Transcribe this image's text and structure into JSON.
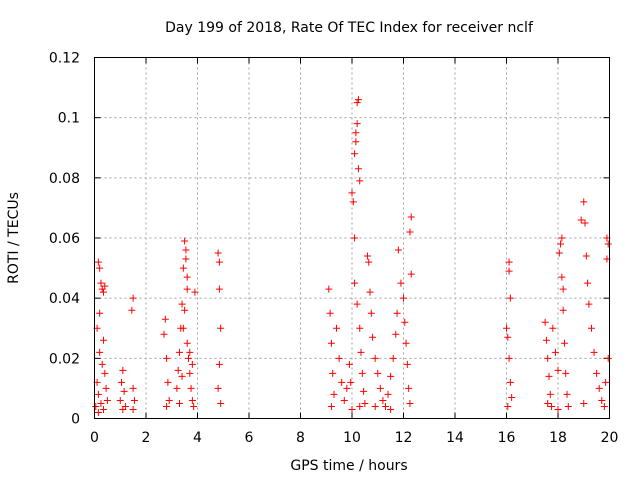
{
  "chart_data": {
    "type": "scatter",
    "title": "Day 199 of 2018, Rate Of TEC Index for receiver nclf",
    "xlabel": "GPS time / hours",
    "ylabel": "ROTI / TECUs",
    "xlim": [
      0,
      20
    ],
    "ylim": [
      0,
      0.12
    ],
    "grid": true,
    "xticks": [
      0,
      2,
      4,
      6,
      8,
      10,
      12,
      14,
      16,
      18,
      20
    ],
    "xtick_labels": [
      "0",
      "2",
      "4",
      "6",
      "8",
      "10",
      "12",
      "14",
      "16",
      "18",
      "20"
    ],
    "yticks": [
      0,
      0.02,
      0.04,
      0.06,
      0.08,
      0.1,
      0.12
    ],
    "ytick_labels": [
      "0",
      "0.02",
      "0.04",
      "0.06",
      "0.08",
      "0.1",
      "0.12"
    ],
    "marker": "+",
    "color": "#ff0000",
    "series": [
      {
        "name": "ROTI",
        "points": [
          [
            0.05,
            0.004
          ],
          [
            0.1,
            0.012
          ],
          [
            0.15,
            0.008
          ],
          [
            0.2,
            0.022
          ],
          [
            0.25,
            0.005
          ],
          [
            0.3,
            0.018
          ],
          [
            0.1,
            0.03
          ],
          [
            0.15,
            0.052
          ],
          [
            0.2,
            0.05
          ],
          [
            0.25,
            0.045
          ],
          [
            0.3,
            0.043
          ],
          [
            0.35,
            0.042
          ],
          [
            0.4,
            0.044
          ],
          [
            0.2,
            0.035
          ],
          [
            0.35,
            0.026
          ],
          [
            0.4,
            0.015
          ],
          [
            0.45,
            0.01
          ],
          [
            0.5,
            0.006
          ],
          [
            0.15,
            0.002
          ],
          [
            0.35,
            0.003
          ],
          [
            1.0,
            0.006
          ],
          [
            1.05,
            0.012
          ],
          [
            1.1,
            0.016
          ],
          [
            1.15,
            0.009
          ],
          [
            1.2,
            0.004
          ],
          [
            1.1,
            0.003
          ],
          [
            1.5,
            0.04
          ],
          [
            1.45,
            0.036
          ],
          [
            1.5,
            0.01
          ],
          [
            1.55,
            0.006
          ],
          [
            1.5,
            0.003
          ],
          [
            2.7,
            0.028
          ],
          [
            2.75,
            0.033
          ],
          [
            2.8,
            0.02
          ],
          [
            2.85,
            0.012
          ],
          [
            2.9,
            0.006
          ],
          [
            2.8,
            0.004
          ],
          [
            3.2,
            0.01
          ],
          [
            3.25,
            0.016
          ],
          [
            3.3,
            0.022
          ],
          [
            3.35,
            0.03
          ],
          [
            3.4,
            0.038
          ],
          [
            3.45,
            0.05
          ],
          [
            3.5,
            0.059
          ],
          [
            3.55,
            0.056
          ],
          [
            3.55,
            0.053
          ],
          [
            3.6,
            0.047
          ],
          [
            3.6,
            0.043
          ],
          [
            3.5,
            0.036
          ],
          [
            3.45,
            0.03
          ],
          [
            3.6,
            0.025
          ],
          [
            3.65,
            0.02
          ],
          [
            3.7,
            0.015
          ],
          [
            3.75,
            0.01
          ],
          [
            3.8,
            0.006
          ],
          [
            3.85,
            0.004
          ],
          [
            3.3,
            0.005
          ],
          [
            3.9,
            0.042
          ],
          [
            3.7,
            0.022
          ],
          [
            3.4,
            0.014
          ],
          [
            3.8,
            0.018
          ],
          [
            4.8,
            0.055
          ],
          [
            4.85,
            0.052
          ],
          [
            4.85,
            0.043
          ],
          [
            4.9,
            0.03
          ],
          [
            4.85,
            0.018
          ],
          [
            4.8,
            0.01
          ],
          [
            4.9,
            0.005
          ],
          [
            9.1,
            0.043
          ],
          [
            9.15,
            0.035
          ],
          [
            9.2,
            0.025
          ],
          [
            9.25,
            0.015
          ],
          [
            9.3,
            0.008
          ],
          [
            9.2,
            0.004
          ],
          [
            9.4,
            0.03
          ],
          [
            9.5,
            0.02
          ],
          [
            9.6,
            0.012
          ],
          [
            9.7,
            0.006
          ],
          [
            9.8,
            0.01
          ],
          [
            9.9,
            0.018
          ],
          [
            9.95,
            0.012
          ],
          [
            10.0,
            0.075
          ],
          [
            10.05,
            0.072
          ],
          [
            10.1,
            0.06
          ],
          [
            10.1,
            0.088
          ],
          [
            10.15,
            0.092
          ],
          [
            10.15,
            0.095
          ],
          [
            10.2,
            0.105
          ],
          [
            10.25,
            0.106
          ],
          [
            10.2,
            0.098
          ],
          [
            10.25,
            0.083
          ],
          [
            10.3,
            0.079
          ],
          [
            10.1,
            0.045
          ],
          [
            10.2,
            0.038
          ],
          [
            10.3,
            0.03
          ],
          [
            10.35,
            0.022
          ],
          [
            10.4,
            0.015
          ],
          [
            10.45,
            0.009
          ],
          [
            10.5,
            0.005
          ],
          [
            10.3,
            0.004
          ],
          [
            10.0,
            0.003
          ],
          [
            10.6,
            0.054
          ],
          [
            10.65,
            0.052
          ],
          [
            10.7,
            0.042
          ],
          [
            10.75,
            0.035
          ],
          [
            10.8,
            0.027
          ],
          [
            10.9,
            0.02
          ],
          [
            11.0,
            0.015
          ],
          [
            11.1,
            0.01
          ],
          [
            11.2,
            0.006
          ],
          [
            11.3,
            0.004
          ],
          [
            11.4,
            0.008
          ],
          [
            11.5,
            0.014
          ],
          [
            11.6,
            0.02
          ],
          [
            11.7,
            0.028
          ],
          [
            11.75,
            0.035
          ],
          [
            11.8,
            0.056
          ],
          [
            11.9,
            0.045
          ],
          [
            12.0,
            0.04
          ],
          [
            12.05,
            0.032
          ],
          [
            12.1,
            0.025
          ],
          [
            12.15,
            0.018
          ],
          [
            12.2,
            0.01
          ],
          [
            12.25,
            0.005
          ],
          [
            12.3,
            0.067
          ],
          [
            12.25,
            0.062
          ],
          [
            12.3,
            0.048
          ],
          [
            10.9,
            0.004
          ],
          [
            11.5,
            0.003
          ],
          [
            16.0,
            0.03
          ],
          [
            16.05,
            0.027
          ],
          [
            16.1,
            0.052
          ],
          [
            16.1,
            0.049
          ],
          [
            16.15,
            0.04
          ],
          [
            16.1,
            0.02
          ],
          [
            16.15,
            0.012
          ],
          [
            16.2,
            0.007
          ],
          [
            16.05,
            0.004
          ],
          [
            17.5,
            0.032
          ],
          [
            17.55,
            0.026
          ],
          [
            17.6,
            0.02
          ],
          [
            17.65,
            0.014
          ],
          [
            17.7,
            0.008
          ],
          [
            17.75,
            0.004
          ],
          [
            17.8,
            0.03
          ],
          [
            17.9,
            0.022
          ],
          [
            18.0,
            0.016
          ],
          [
            18.05,
            0.055
          ],
          [
            18.1,
            0.058
          ],
          [
            18.15,
            0.047
          ],
          [
            18.2,
            0.043
          ],
          [
            18.15,
            0.06
          ],
          [
            18.2,
            0.036
          ],
          [
            18.25,
            0.025
          ],
          [
            18.3,
            0.015
          ],
          [
            18.35,
            0.008
          ],
          [
            18.4,
            0.004
          ],
          [
            18.0,
            0.003
          ],
          [
            17.6,
            0.005
          ],
          [
            18.9,
            0.066
          ],
          [
            19.0,
            0.072
          ],
          [
            19.05,
            0.065
          ],
          [
            19.1,
            0.054
          ],
          [
            19.15,
            0.045
          ],
          [
            19.2,
            0.038
          ],
          [
            19.3,
            0.03
          ],
          [
            19.4,
            0.022
          ],
          [
            19.5,
            0.015
          ],
          [
            19.6,
            0.01
          ],
          [
            19.7,
            0.006
          ],
          [
            19.8,
            0.004
          ],
          [
            19.9,
            0.06
          ],
          [
            19.95,
            0.058
          ],
          [
            19.9,
            0.053
          ],
          [
            19.95,
            0.02
          ],
          [
            19.85,
            0.012
          ],
          [
            19.0,
            0.005
          ]
        ]
      }
    ]
  }
}
